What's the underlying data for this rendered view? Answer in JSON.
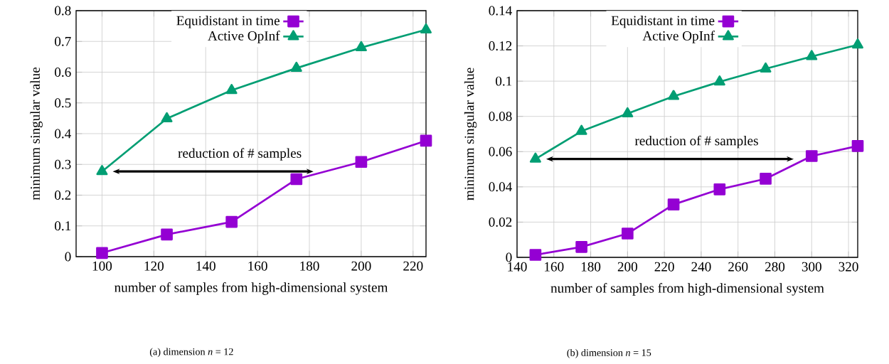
{
  "chart_data": [
    {
      "type": "line",
      "xlabel": "number of samples from high-dimensional system",
      "ylabel": "minimum singular value",
      "x": [
        100,
        125,
        150,
        175,
        200,
        225
      ],
      "series": [
        {
          "name": "Equidistant in time",
          "color": "#9400d3",
          "marker": "square",
          "line_style": "solid",
          "values": [
            0.012,
            0.072,
            0.113,
            0.252,
            0.308,
            0.377
          ]
        },
        {
          "name": "Active OpInf",
          "color": "#009e73",
          "marker": "triangle",
          "line_style": "solid",
          "values": [
            0.277,
            0.449,
            0.541,
            0.613,
            0.68,
            0.738
          ]
        }
      ],
      "xlim": [
        90,
        225
      ],
      "xticks": [
        100,
        120,
        140,
        160,
        180,
        200,
        220
      ],
      "ylim": [
        0,
        0.8
      ],
      "yticks": [
        0,
        0.1,
        0.2,
        0.3,
        0.4,
        0.5,
        0.6,
        0.7,
        0.8
      ],
      "grid": true,
      "legend": "top",
      "annotations": [
        "reduction of # samples",
        "(a) dimension *n* = 12"
      ]
    },
    {
      "type": "line",
      "xlabel": "number of samples from high-dimensional system",
      "ylabel": "minimum singular value",
      "x": [
        150,
        175,
        200,
        225,
        250,
        275,
        300,
        325
      ],
      "series": [
        {
          "name": "Equidistant in time",
          "color": "#9400d3",
          "marker": "square",
          "line_style": "solid",
          "values": [
            0.0014,
            0.0059,
            0.0135,
            0.03,
            0.0386,
            0.0446,
            0.0575,
            0.0632
          ]
        },
        {
          "name": "Active OpInf",
          "color": "#009e73",
          "marker": "triangle",
          "line_style": "solid",
          "values": [
            0.0558,
            0.0716,
            0.0816,
            0.0914,
            0.0996,
            0.107,
            0.114,
            0.1206
          ]
        }
      ],
      "xlim": [
        140,
        325
      ],
      "xticks": [
        140,
        160,
        180,
        200,
        220,
        240,
        260,
        280,
        300,
        320
      ],
      "ylim": [
        0,
        0.14
      ],
      "yticks": [
        0,
        0.02,
        0.04,
        0.06,
        0.08,
        0.1,
        0.12,
        0.14
      ],
      "grid": true,
      "legend": "top",
      "annotations": [
        "reduction of # samples",
        "(b) dimension *n* = 15"
      ]
    }
  ]
}
